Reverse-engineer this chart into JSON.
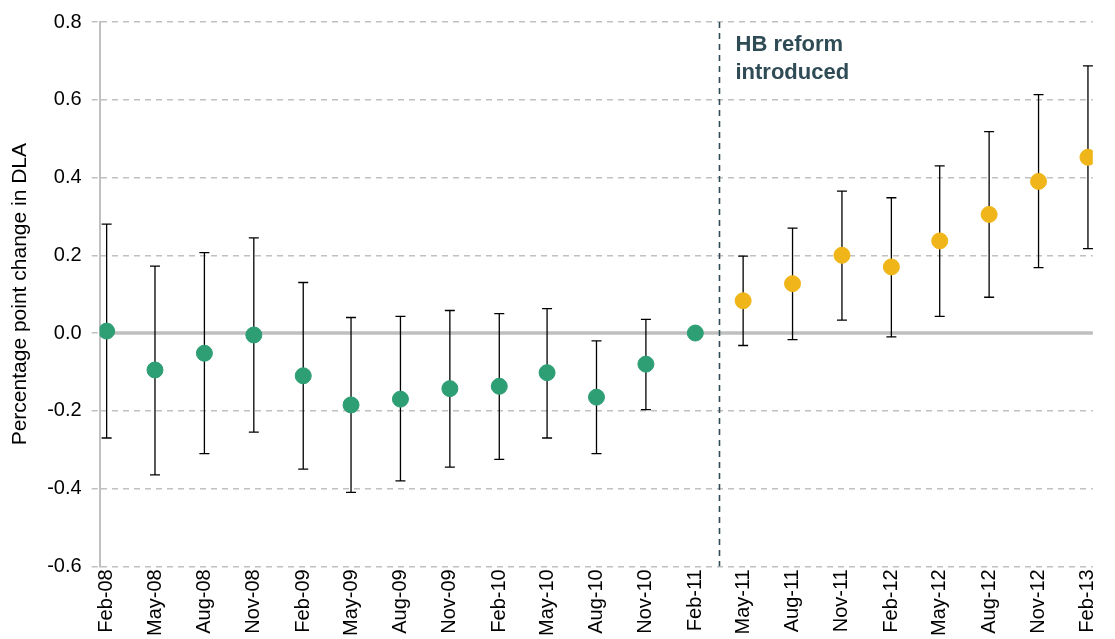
{
  "chart_data": {
    "type": "scatter",
    "ylabel": "Percentage point change in DLA",
    "x": [
      "2008-02",
      "2008-05",
      "2008-08",
      "2008-11",
      "2009-02",
      "2009-05",
      "2009-08",
      "2009-11",
      "2010-02",
      "2010-05",
      "2010-08",
      "2010-11",
      "2011-02",
      "2011-05",
      "2011-08",
      "2011-11",
      "2012-02",
      "2012-05",
      "2012-08",
      "2012-11",
      "2013-02"
    ],
    "xlim": [
      "2008-01-19",
      "2013-02-10"
    ],
    "xticks": [
      {
        "value": "2008-02",
        "label": "Feb-08"
      },
      {
        "value": "2008-05",
        "label": "May-08"
      },
      {
        "value": "2008-08",
        "label": "Aug-08"
      },
      {
        "value": "2008-11",
        "label": "Nov-08"
      },
      {
        "value": "2009-02",
        "label": "Feb-09"
      },
      {
        "value": "2009-05",
        "label": "May-09"
      },
      {
        "value": "2009-08",
        "label": "Aug-09"
      },
      {
        "value": "2009-11",
        "label": "Nov-09"
      },
      {
        "value": "2010-02",
        "label": "Feb-10"
      },
      {
        "value": "2010-05",
        "label": "May-10"
      },
      {
        "value": "2010-08",
        "label": "Aug-10"
      },
      {
        "value": "2010-11",
        "label": "Nov-10"
      },
      {
        "value": "2011-02",
        "label": "Feb-11"
      },
      {
        "value": "2011-05",
        "label": "May-11"
      },
      {
        "value": "2011-08",
        "label": "Aug-11"
      },
      {
        "value": "2011-11",
        "label": "Nov-11"
      },
      {
        "value": "2012-02",
        "label": "Feb-12"
      },
      {
        "value": "2012-05",
        "label": "May-12"
      },
      {
        "value": "2012-08",
        "label": "Aug-12"
      },
      {
        "value": "2012-11",
        "label": "Nov-12"
      },
      {
        "value": "2013-02",
        "label": "Feb-13"
      }
    ],
    "series": [
      {
        "color": "#2e9e75",
        "values": [
          0.005,
          -0.095,
          -0.052,
          -0.005,
          -0.11,
          -0.185,
          -0.17,
          -0.143,
          -0.137,
          -0.102,
          -0.165,
          -0.08,
          0,
          null,
          null,
          null,
          null,
          null,
          null,
          null,
          null
        ],
        "errors": [
          [
            -0.27,
            0.28
          ],
          [
            -0.365,
            0.172
          ],
          [
            -0.31,
            0.207
          ],
          [
            -0.255,
            0.245
          ],
          [
            -0.35,
            0.13
          ],
          [
            -0.41,
            0.04
          ],
          [
            -0.38,
            0.043
          ],
          [
            -0.345,
            0.058
          ],
          [
            -0.325,
            0.05
          ],
          [
            -0.27,
            0.063
          ],
          [
            -0.31,
            -0.02
          ],
          [
            -0.197,
            0.035
          ],
          null,
          null,
          null,
          null,
          null,
          null,
          null,
          null,
          null
        ]
      },
      {
        "color": "#f0b619",
        "values": [
          null,
          null,
          null,
          null,
          null,
          null,
          null,
          null,
          null,
          null,
          null,
          null,
          null,
          0.083,
          0.127,
          0.2,
          0.17,
          0.237,
          0.305,
          0.39,
          0.452
        ],
        "errors": [
          null,
          null,
          null,
          null,
          null,
          null,
          null,
          null,
          null,
          null,
          null,
          null,
          null,
          [
            -0.032,
            0.198
          ],
          [
            -0.017,
            0.27
          ],
          [
            0.033,
            0.365
          ],
          [
            -0.01,
            0.348
          ],
          [
            0.043,
            0.43
          ],
          [
            0.092,
            0.518
          ],
          [
            0.168,
            0.613
          ],
          [
            0.217,
            0.687
          ]
        ]
      }
    ],
    "ylim": [
      -0.6,
      0.8
    ],
    "yticks": [
      {
        "value": -0.6,
        "label": "-0.6"
      },
      {
        "value": -0.4,
        "label": "-0.4"
      },
      {
        "value": -0.2,
        "label": "-0.2"
      },
      {
        "value": 0,
        "label": "0.0"
      },
      {
        "value": 0.2,
        "label": "0.2"
      },
      {
        "value": 0.4,
        "label": "0.4"
      },
      {
        "value": 0.6,
        "label": "0.6"
      },
      {
        "value": 0.8,
        "label": "0.8"
      }
    ],
    "grid": "y",
    "marker": "circle",
    "legend": false,
    "ref_lines": [
      {
        "axis": "y",
        "value": 0,
        "color": "#bfbfbf",
        "line_style": "solid"
      },
      {
        "axis": "x",
        "value": "2011-03-18",
        "label": "HB reform introduced",
        "color": "#2f4b55",
        "line_style": "dashed"
      }
    ]
  }
}
